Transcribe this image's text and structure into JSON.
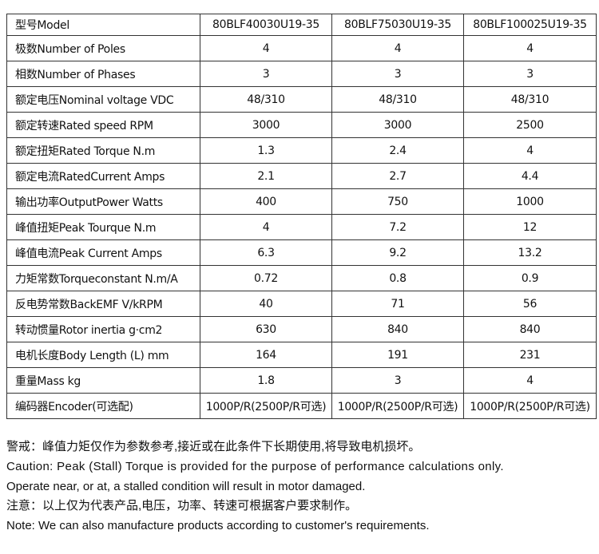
{
  "table": {
    "header": {
      "label": "型号Model",
      "models": [
        "80BLF40030U19-35",
        "80BLF75030U19-35",
        "80BLF100025U19-35"
      ]
    },
    "rows": [
      {
        "label": "极数Number of Poles",
        "values": [
          "4",
          "4",
          "4"
        ]
      },
      {
        "label": "相数Number of Phases",
        "values": [
          "3",
          "3",
          "3"
        ]
      },
      {
        "label": "额定电压Nominal voltage VDC",
        "values": [
          "48/310",
          "48/310",
          "48/310"
        ]
      },
      {
        "label": "额定转速Rated speed RPM",
        "values": [
          "3000",
          "3000",
          "2500"
        ]
      },
      {
        "label": "额定扭矩Rated Torque N.m",
        "values": [
          "1.3",
          "2.4",
          "4"
        ]
      },
      {
        "label": "额定电流RatedCurrent Amps",
        "values": [
          "2.1",
          "2.7",
          "4.4"
        ]
      },
      {
        "label": "输出功率OutputPower Watts",
        "values": [
          "400",
          "750",
          "1000"
        ]
      },
      {
        "label": "峰值扭矩Peak Tourque N.m",
        "values": [
          "4",
          "7.2",
          "12"
        ]
      },
      {
        "label": "峰值电流Peak Current Amps",
        "values": [
          "6.3",
          "9.2",
          "13.2"
        ]
      },
      {
        "label": "力矩常数Torqueconstant N.m/A",
        "values": [
          "0.72",
          "0.8",
          "0.9"
        ]
      },
      {
        "label": "反电势常数BackEMF V/kRPM",
        "values": [
          "40",
          "71",
          "56"
        ]
      },
      {
        "label": "转动惯量Rotor inertia g·cm2",
        "values": [
          "630",
          "840",
          "840"
        ]
      },
      {
        "label": "电机长度Body Length (L) mm",
        "values": [
          "164",
          "191",
          "231"
        ]
      },
      {
        "label": "重量Mass kg",
        "values": [
          "1.8",
          "3",
          "4"
        ]
      },
      {
        "label": "编码器Encoder(可选配)",
        "values": [
          "1000P/R(2500P/R可选)",
          "1000P/R(2500P/R可选)",
          "1000P/R(2500P/R可选)"
        ]
      }
    ]
  },
  "notes": {
    "warning_cn": "警戒：峰值力矩仅作为参数参考,接近或在此条件下长期使用,将导致电机损坏。",
    "caution_en_1": "Caution:  Peak (Stall) Torque is provided for the purpose of performance calculations only.",
    "caution_en_2": "Operate near, or at, a stalled condition will result in motor damaged.",
    "note_cn": "注意：以上仅为代表产品,电压，功率、转速可根据客户要求制作。",
    "note_en": "Note:  We can also manufacture products according to customer's requirements."
  }
}
